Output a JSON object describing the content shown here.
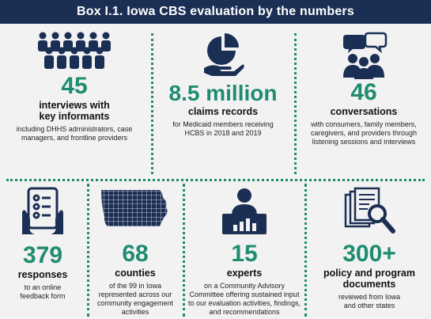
{
  "header": {
    "title": "Box I.1. Iowa CBS evaluation by the numbers"
  },
  "colors": {
    "header_bg": "#1b2f55",
    "accent": "#1f8c72",
    "icon": "#1b2f55"
  },
  "stats": [
    {
      "number": "45",
      "label": "interviews with key informants",
      "desc": "including DHHS administrators, case managers, and frontline providers",
      "icon": "people-group-icon"
    },
    {
      "number": "8.5 million",
      "label": "claims records",
      "desc": "for Medicaid members receiving HCBS in 2018 and 2019",
      "icon": "pie-chart-hand-icon"
    },
    {
      "number": "46",
      "label": "conversations",
      "desc": "with consumers, family members, caregivers, and providers through listening sessions and interviews",
      "icon": "conversation-people-icon"
    },
    {
      "number": "379",
      "label": "responses",
      "desc": "to an online feedback form",
      "icon": "tablet-form-icon"
    },
    {
      "number": "68",
      "label": "counties",
      "desc": "of the 99 in Iowa represented across our community engagement activities",
      "icon": "iowa-map-icon"
    },
    {
      "number": "15",
      "label": "experts",
      "desc": "on a Community Advisory Committee offering sustained input to our evaluation activities, findings, and recommendations",
      "icon": "presenter-chart-icon"
    },
    {
      "number": "300+",
      "label": "policy and program documents",
      "desc": "reviewed from Iowa and other states",
      "icon": "documents-magnifier-icon"
    }
  ]
}
